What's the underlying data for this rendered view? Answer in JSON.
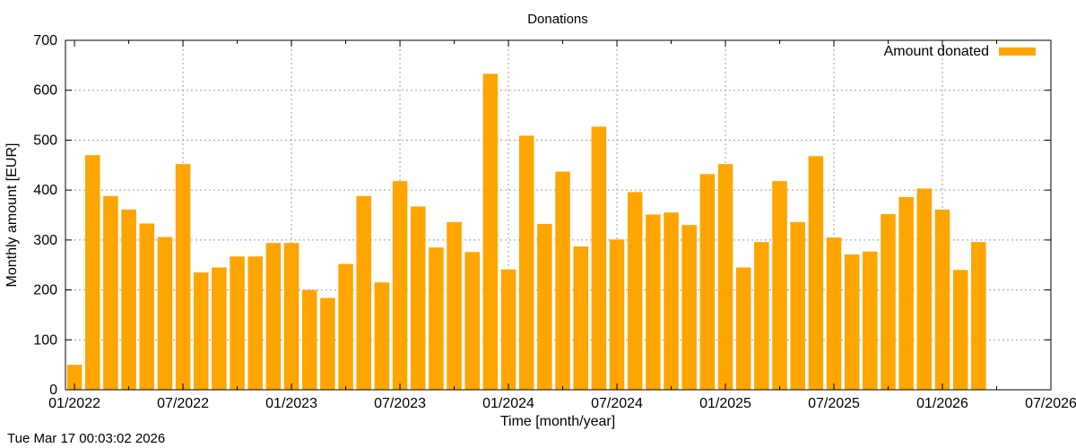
{
  "chart_data": {
    "type": "bar",
    "title": "Donations",
    "xlabel": "Time [month/year]",
    "ylabel": "Monthly amount [EUR]",
    "ylim": [
      0,
      700
    ],
    "yticks": [
      0,
      100,
      200,
      300,
      400,
      500,
      600,
      700
    ],
    "xlim": [
      "2022-01",
      "2026-07"
    ],
    "xticks": [
      "01/2022",
      "07/2022",
      "01/2023",
      "07/2023",
      "01/2024",
      "07/2024",
      "01/2025",
      "07/2025",
      "01/2026",
      "07/2026"
    ],
    "grid": true,
    "legend": "top-right",
    "color": "#ffa500",
    "series": [
      {
        "name": "Amount donated",
        "months": [
          "2022-01",
          "2022-02",
          "2022-03",
          "2022-04",
          "2022-05",
          "2022-06",
          "2022-07",
          "2022-08",
          "2022-09",
          "2022-10",
          "2022-11",
          "2022-12",
          "2023-01",
          "2023-02",
          "2023-03",
          "2023-04",
          "2023-05",
          "2023-06",
          "2023-07",
          "2023-08",
          "2023-09",
          "2023-10",
          "2023-11",
          "2023-12",
          "2024-01",
          "2024-02",
          "2024-03",
          "2024-04",
          "2024-05",
          "2024-06",
          "2024-07",
          "2024-08",
          "2024-09",
          "2024-10",
          "2024-11",
          "2024-12",
          "2025-01",
          "2025-02",
          "2025-03",
          "2025-04",
          "2025-05",
          "2025-06",
          "2025-07",
          "2025-08",
          "2025-09",
          "2025-10",
          "2025-11",
          "2025-12",
          "2026-01",
          "2026-02",
          "2026-03"
        ],
        "values": [
          50,
          470,
          388,
          361,
          333,
          306,
          452,
          235,
          245,
          267,
          267,
          294,
          294,
          200,
          184,
          252,
          388,
          215,
          418,
          367,
          285,
          336,
          276,
          633,
          241,
          509,
          332,
          437,
          287,
          527,
          301,
          396,
          351,
          355,
          330,
          432,
          452,
          245,
          296,
          418,
          336,
          468,
          305,
          271,
          277,
          352,
          386,
          403,
          361,
          240,
          296
        ]
      }
    ]
  },
  "timestamp": "Tue Mar 17 00:03:02 2026"
}
